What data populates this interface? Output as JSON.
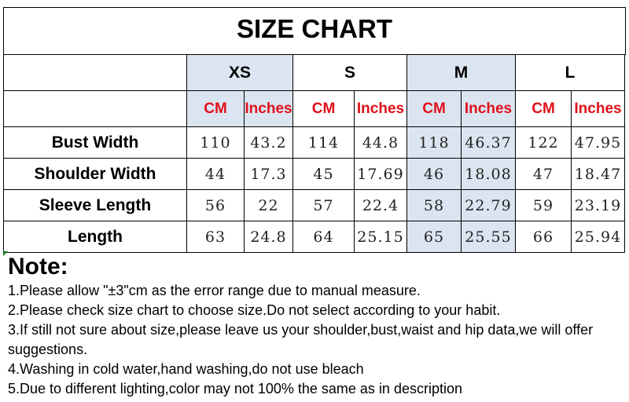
{
  "title": "SIZE CHART",
  "sizes": [
    "XS",
    "S",
    "M",
    "L"
  ],
  "units": [
    "CM",
    "Inches"
  ],
  "highlight_color": "#dbe5f1",
  "unit_color": "#e0101a",
  "rows": [
    {
      "label": "Bust Width",
      "values": [
        "110",
        "43.2",
        "114",
        "44.8",
        "118",
        "46.37",
        "122",
        "47.95"
      ]
    },
    {
      "label": "Shoulder Width",
      "values": [
        "44",
        "17.3",
        "45",
        "17.69",
        "46",
        "18.08",
        "47",
        "18.47"
      ]
    },
    {
      "label": "Sleeve Length",
      "values": [
        "56",
        "22",
        "57",
        "22.4",
        "58",
        "22.79",
        "59",
        "23.19"
      ]
    },
    {
      "label": "Length",
      "values": [
        "63",
        "24.8",
        "64",
        "25.15",
        "65",
        "25.55",
        "66",
        "25.94"
      ]
    }
  ],
  "notes": {
    "heading": "Note:",
    "lines": [
      "1.Please allow \"±3\"cm as the error range due to manual measure.",
      "2.Please check size chart to choose size.Do not select according to your habit.",
      "3.If still not sure about size,please leave us your shoulder,bust,waist and hip data,we will offer suggestions.",
      "4.Washing in cold water,hand washing,do not use bleach",
      "5.Due to different lighting,color may not 100% the same as in description"
    ]
  }
}
